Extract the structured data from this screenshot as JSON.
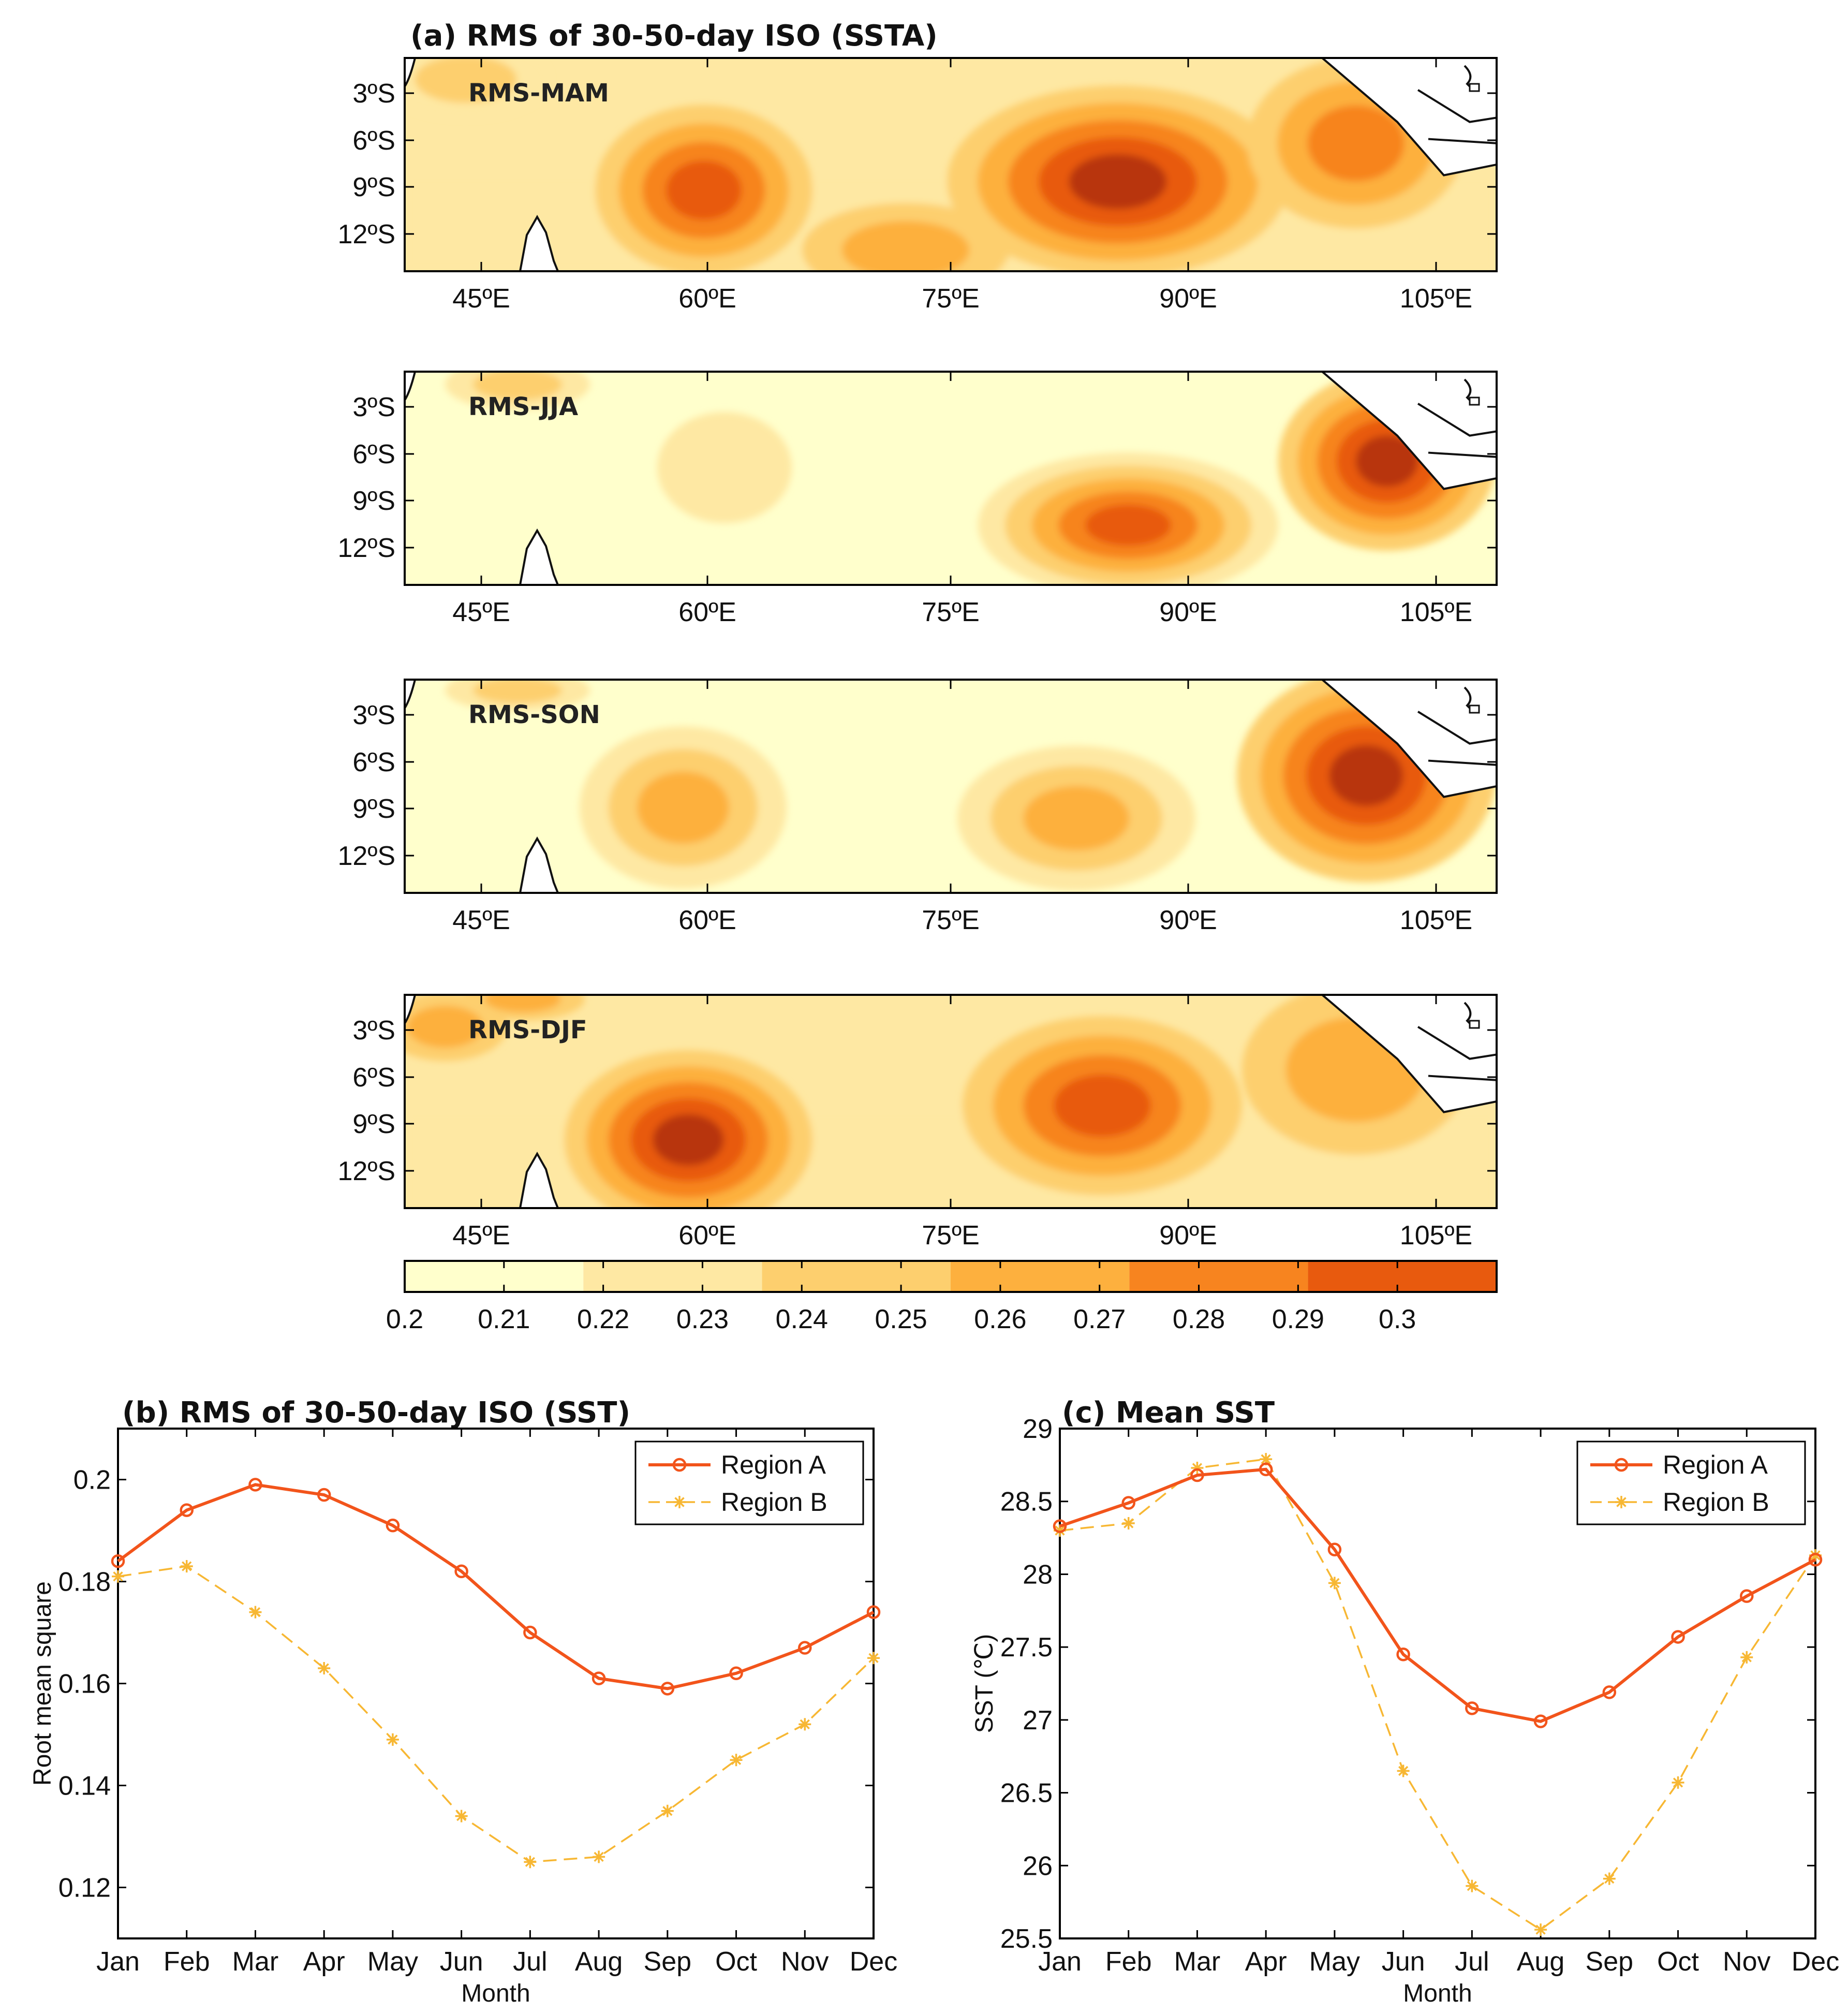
{
  "panel_a": {
    "title": "(a) RMS of  30-50-day ISO (SSTA)",
    "maps": [
      {
        "label": "RMS-MAM"
      },
      {
        "label": "RMS-JJA"
      },
      {
        "label": "RMS-SON"
      },
      {
        "label": "RMS-DJF"
      }
    ],
    "lat_ticks": [
      "3ºS",
      "6ºS",
      "9ºS",
      "12ºS"
    ],
    "lon_ticks": [
      "45ºE",
      "60ºE",
      "75ºE",
      "90ºE",
      "105ºE"
    ],
    "colorbar": {
      "ticks": [
        "0.2",
        "0.21",
        "0.22",
        "0.23",
        "0.24",
        "0.25",
        "0.26",
        "0.27",
        "0.28",
        "0.29",
        "0.3"
      ],
      "colors": [
        "#ffffcc",
        "#fee8a3",
        "#fdcf6e",
        "#fdb03e",
        "#f7841f",
        "#e85a0e",
        "#b8350a"
      ]
    }
  },
  "chart_data": [
    {
      "type": "line",
      "title": "(b) RMS of 30-50-day ISO (SST)",
      "xlabel": "Month",
      "ylabel": "Root mean square",
      "categories": [
        "Jan",
        "Feb",
        "Mar",
        "Apr",
        "May",
        "Jun",
        "Jul",
        "Aug",
        "Sep",
        "Oct",
        "Nov",
        "Dec"
      ],
      "ylim": [
        0.11,
        0.21
      ],
      "yticks": [
        "0.12",
        "0.14",
        "0.16",
        "0.18",
        "0.2"
      ],
      "ytick_values": [
        0.12,
        0.14,
        0.16,
        0.18,
        0.2
      ],
      "legend": "top-right",
      "series": [
        {
          "name": "Region A",
          "color": "#f2541b",
          "marker": "circle",
          "values": [
            0.184,
            0.194,
            0.199,
            0.197,
            0.191,
            0.182,
            0.17,
            0.161,
            0.159,
            0.162,
            0.167,
            0.174
          ]
        },
        {
          "name": "Region B",
          "color": "#f7b733",
          "marker": "star",
          "values": [
            0.181,
            0.183,
            0.174,
            0.163,
            0.149,
            0.134,
            0.125,
            0.126,
            0.135,
            0.145,
            0.152,
            0.165
          ]
        }
      ]
    },
    {
      "type": "line",
      "title": "(c) Mean SST",
      "xlabel": "Month",
      "ylabel": "SST (℃)",
      "categories": [
        "Jan",
        "Feb",
        "Mar",
        "Apr",
        "May",
        "Jun",
        "Jul",
        "Aug",
        "Sep",
        "Oct",
        "Nov",
        "Dec"
      ],
      "ylim": [
        25.5,
        29
      ],
      "yticks": [
        "25.5",
        "26",
        "26.5",
        "27",
        "27.5",
        "28",
        "28.5",
        "29"
      ],
      "ytick_values": [
        25.5,
        26,
        26.5,
        27,
        27.5,
        28,
        28.5,
        29
      ],
      "legend": "top-right",
      "series": [
        {
          "name": "Region A",
          "color": "#f2541b",
          "marker": "circle",
          "values": [
            28.33,
            28.49,
            28.68,
            28.72,
            28.17,
            27.45,
            27.08,
            26.99,
            27.19,
            27.57,
            27.85,
            28.1
          ]
        },
        {
          "name": "Region B",
          "color": "#f7b733",
          "marker": "star",
          "values": [
            28.3,
            28.35,
            28.73,
            28.79,
            27.94,
            26.65,
            25.86,
            25.56,
            25.91,
            26.57,
            27.43,
            28.13
          ]
        }
      ]
    }
  ]
}
